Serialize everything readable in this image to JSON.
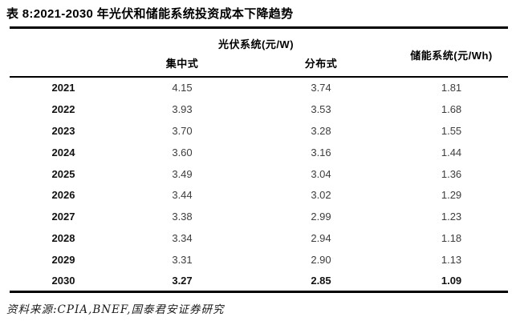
{
  "page": {
    "title": "表 8:2021-2030 年光伏和储能系统投资成本下降趋势"
  },
  "table": {
    "pv_group_header": "光伏系统(元/W)",
    "storage_header": "储能系统(元/Wh)",
    "col_centralized": "集中式",
    "col_distributed": "分布式",
    "rows": [
      {
        "year": "2021",
        "centralized": "4.15",
        "distributed": "3.74",
        "storage": "1.81"
      },
      {
        "year": "2022",
        "centralized": "3.93",
        "distributed": "3.53",
        "storage": "1.68"
      },
      {
        "year": "2023",
        "centralized": "3.70",
        "distributed": "3.28",
        "storage": "1.55"
      },
      {
        "year": "2024",
        "centralized": "3.60",
        "distributed": "3.16",
        "storage": "1.44"
      },
      {
        "year": "2025",
        "centralized": "3.49",
        "distributed": "3.04",
        "storage": "1.36"
      },
      {
        "year": "2026",
        "centralized": "3.44",
        "distributed": "3.02",
        "storage": "1.29"
      },
      {
        "year": "2027",
        "centralized": "3.38",
        "distributed": "2.99",
        "storage": "1.23"
      },
      {
        "year": "2028",
        "centralized": "3.34",
        "distributed": "2.94",
        "storage": "1.18"
      },
      {
        "year": "2029",
        "centralized": "3.31",
        "distributed": "2.90",
        "storage": "1.13"
      },
      {
        "year": "2030",
        "centralized": "3.27",
        "distributed": "2.85",
        "storage": "1.09"
      }
    ]
  },
  "footer": {
    "source": "资料来源:CPIA,BNEF,国泰君安证券研究"
  },
  "colors": {
    "background": "#ffffff",
    "title_text": "#000000",
    "value_text": "#3d3d3d",
    "rule": "#000000"
  },
  "chart_data": {
    "type": "table",
    "title": "表 8:2021-2030 年光伏和储能系统投资成本下降趋势",
    "column_groups": [
      {
        "label": "光伏系统(元/W)",
        "columns": [
          "集中式",
          "分布式"
        ]
      },
      {
        "label": "储能系统(元/Wh)",
        "columns": [
          "储能系统(元/Wh)"
        ]
      }
    ],
    "categories": [
      "2021",
      "2022",
      "2023",
      "2024",
      "2025",
      "2026",
      "2027",
      "2028",
      "2029",
      "2030"
    ],
    "series": [
      {
        "name": "光伏系统-集中式(元/W)",
        "values": [
          4.15,
          3.93,
          3.7,
          3.6,
          3.49,
          3.44,
          3.38,
          3.34,
          3.31,
          3.27
        ]
      },
      {
        "name": "光伏系统-分布式(元/W)",
        "values": [
          3.74,
          3.53,
          3.28,
          3.16,
          3.04,
          3.02,
          2.99,
          2.94,
          2.9,
          2.85
        ]
      },
      {
        "name": "储能系统(元/Wh)",
        "values": [
          1.81,
          1.68,
          1.55,
          1.44,
          1.36,
          1.29,
          1.23,
          1.18,
          1.13,
          1.09
        ]
      }
    ],
    "source": "资料来源:CPIA,BNEF,国泰君安证券研究"
  }
}
